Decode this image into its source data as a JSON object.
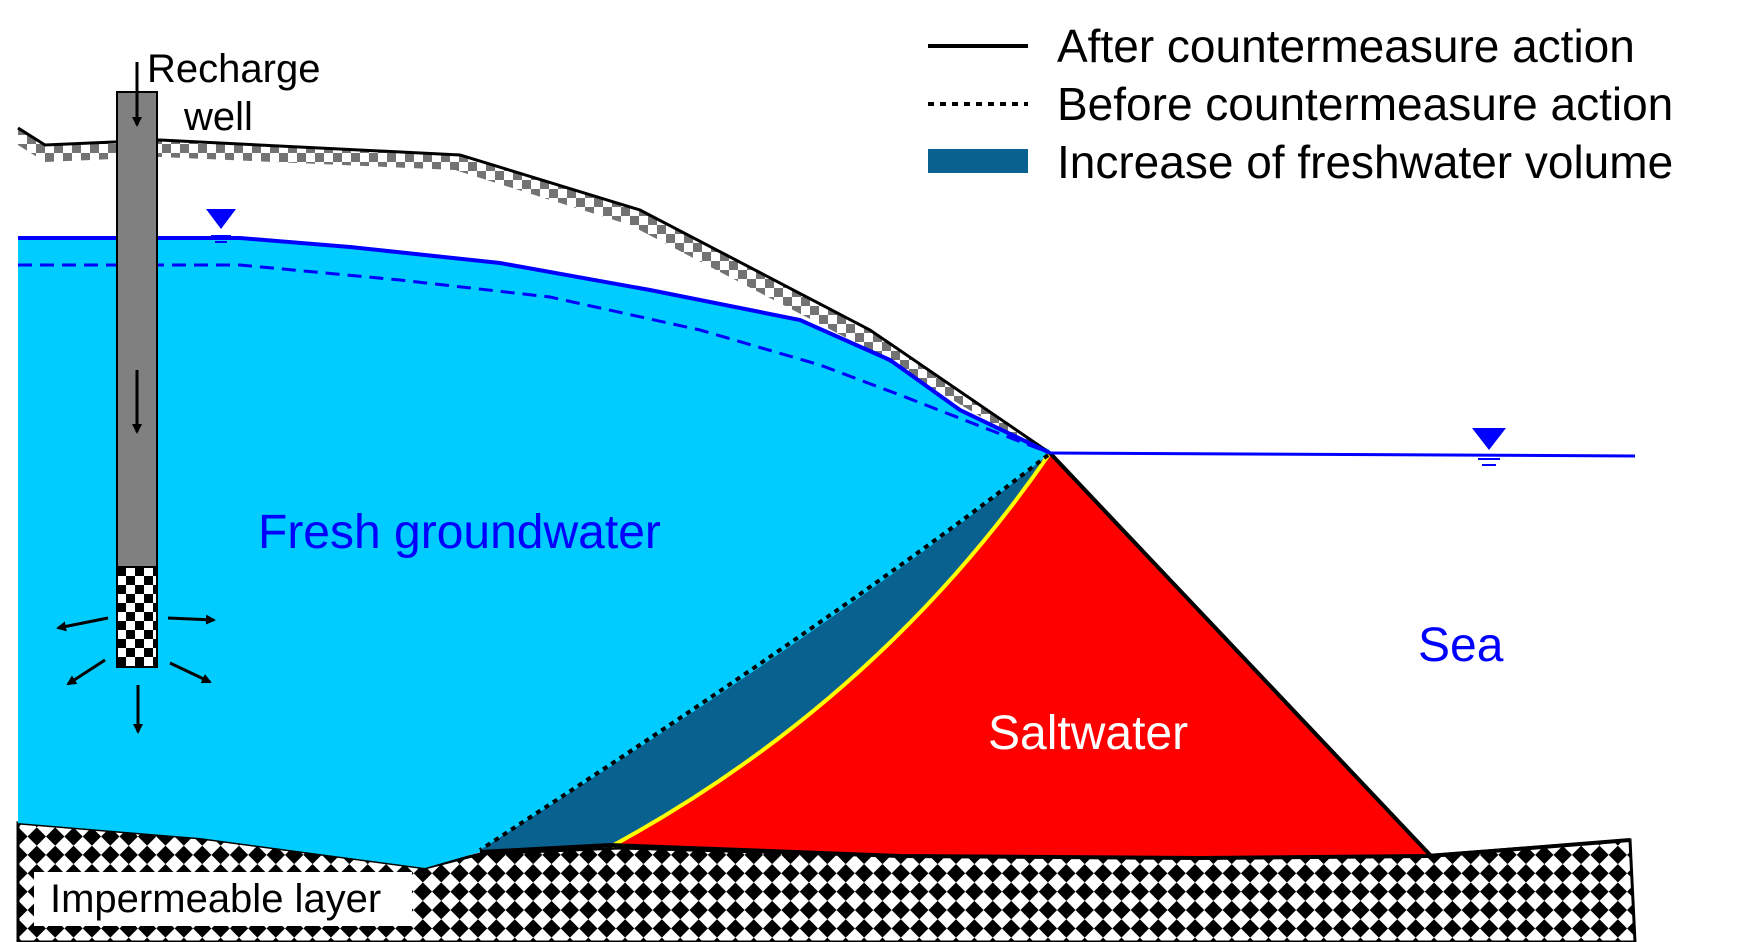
{
  "legend": {
    "items": [
      {
        "label": "After countermeasure action",
        "style": "solid-line",
        "color": "#000000"
      },
      {
        "label": "Before countermeasure action",
        "style": "dotted-line",
        "color": "#000000"
      },
      {
        "label": "Increase of freshwater volume",
        "style": "filled-bar",
        "color": "#08618f"
      }
    ]
  },
  "labels": {
    "recharge_well_line1": "Recharge",
    "recharge_well_line2": "well",
    "fresh_groundwater": "Fresh groundwater",
    "saltwater": "Saltwater",
    "sea": "Sea",
    "impermeable_layer": "Impermeable layer"
  },
  "colors": {
    "fresh_groundwater": "#00ccff",
    "freshwater_increase": "#08618f",
    "saltwater": "#ff0000",
    "water_table": "#0000ff",
    "interface_after": "#ffff00",
    "well_casing": "#808080",
    "label_blue": "#0000ff",
    "label_white": "#ffffff"
  }
}
